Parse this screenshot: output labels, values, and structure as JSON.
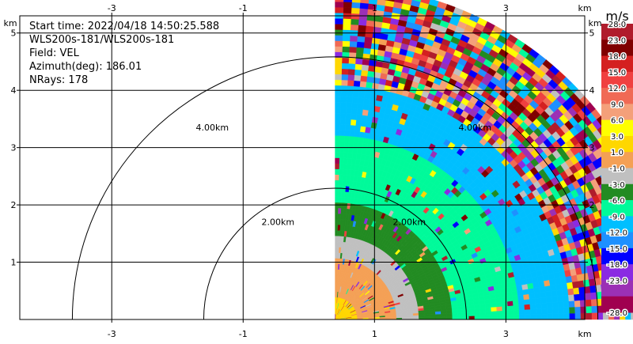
{
  "info": {
    "start_time": "Start time: 2022/04/18 14:50:25.588",
    "instrument": "WLS200s-181/WLS200s-181",
    "field": "Field: VEL",
    "azimuth": "Azimuth(deg): 186.01",
    "nrays": "NRays: 178"
  },
  "chart_data": {
    "type": "heatmap",
    "projection": "polar-sector PPI",
    "xlim": [
      -4.4,
      4.2
    ],
    "ylim": [
      0,
      5.3
    ],
    "x_unit": "km",
    "y_unit": "km",
    "x_ticks": [
      -3,
      -1,
      1,
      3
    ],
    "y_ticks": [
      1,
      2,
      3,
      4,
      5
    ],
    "x_tick_labels": [
      "-3",
      "-1",
      "1",
      "3"
    ],
    "y_tick_labels": [
      "1",
      "2",
      "3",
      "4",
      "5"
    ],
    "grid": true,
    "range_rings": [
      {
        "radius_km": 2.0,
        "label": "2.00km"
      },
      {
        "radius_km": 4.0,
        "label": "4.00km"
      }
    ],
    "sector": {
      "origin_x_km": 0.0,
      "origin_y_km": 0.0,
      "max_range_km": 5.1,
      "azimuth_from_deg": 0,
      "azimuth_to_deg": 90
    },
    "colorbar": {
      "unit": "m/s",
      "levels": [
        "28.0",
        "23.0",
        "18.0",
        "15.0",
        "12.0",
        "9.0",
        "6.0",
        "3.0",
        "1.0",
        "-1.0",
        "-3.0",
        "-6.0",
        "-9.0",
        "-12.0",
        "-15.0",
        "-18.0",
        "-23.0",
        "-28.0"
      ],
      "colors": [
        "#b01c2c",
        "#800000",
        "#d42020",
        "#f04040",
        "#f06a55",
        "#f4a07a",
        "#ffff00",
        "#ffd700",
        "#f4a055",
        "#c0c0c0",
        "#228b22",
        "#00fa9a",
        "#00bfff",
        "#1e90ff",
        "#0000ff",
        "#8a2be2",
        "#9b30b5",
        "#a00050"
      ]
    },
    "field_bands": [
      {
        "range_km": [
          0.0,
          0.3
        ],
        "value": 2.0
      },
      {
        "range_km": [
          0.3,
          0.9
        ],
        "value": 0.0
      },
      {
        "range_km": [
          0.9,
          1.3
        ],
        "value": -2.0
      },
      {
        "range_km": [
          1.3,
          1.8
        ],
        "value": -4.0
      },
      {
        "range_km": [
          1.8,
          2.8
        ],
        "value": -7.0
      },
      {
        "range_km": [
          2.8,
          3.6
        ],
        "value": -10.0
      },
      {
        "range_km": [
          3.6,
          5.1
        ],
        "value": null
      }
    ]
  }
}
